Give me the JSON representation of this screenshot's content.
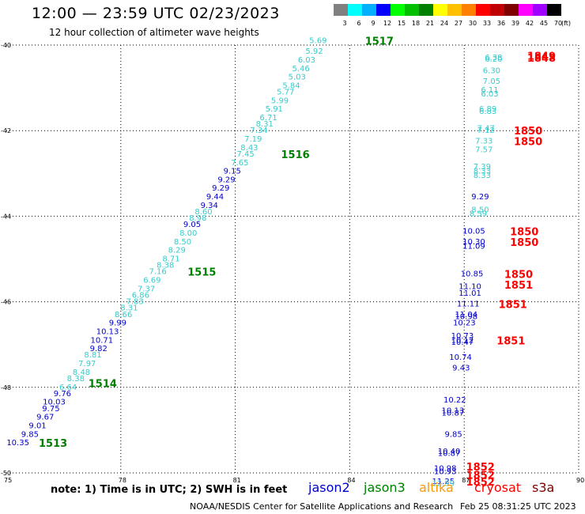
{
  "header": {
    "title": "12:00 — 23:59 UTC 02/23/2023",
    "subtitle": "12 hour collection of altimeter wave heights"
  },
  "colorbar": {
    "labels": [
      "3",
      "6",
      "9",
      "12",
      "15",
      "18",
      "21",
      "24",
      "27",
      "30",
      "33",
      "36",
      "39",
      "42",
      "45",
      "70",
      "(ft)"
    ],
    "colors": [
      "#808080",
      "#00ffff",
      "#00b0ff",
      "#0000ff",
      "#00ff00",
      "#00c000",
      "#008000",
      "#ffff00",
      "#ffc000",
      "#ff8000",
      "#ff0000",
      "#c00000",
      "#800000",
      "#ff00ff",
      "#a000ff",
      "#000000"
    ]
  },
  "footer": {
    "note": "note:  1) Time is in UTC;  2) SWH is in feet",
    "satellites": [
      {
        "name": "jason2",
        "color": "#0000cc"
      },
      {
        "name": "jason3",
        "color": "#008000"
      },
      {
        "name": "altika",
        "color": "#ff9900"
      },
      {
        "name": "cryosat",
        "color": "#ff0000"
      },
      {
        "name": "s3a",
        "color": "#800000"
      }
    ],
    "credit": "NOAA/NESDIS Center for Satellite Applications and Research",
    "timestamp": "Feb 25 08:31:25 UTC 2023"
  },
  "chart_data": {
    "type": "scatter",
    "title": "12:00 — 23:59 UTC 02/23/2023",
    "subtitle": "12 hour collection of altimeter wave heights",
    "xlabel": "",
    "ylabel": "",
    "xlim": [
      75,
      90
    ],
    "ylim": [
      -50,
      -40
    ],
    "x_ticks": [
      "75",
      "78",
      "81",
      "84",
      "87",
      "90"
    ],
    "y_ticks": [
      "-40",
      "-42",
      "-44",
      "-46",
      "-48",
      "-50"
    ],
    "grid": true,
    "series": [
      {
        "name": "track_west",
        "points": [
          {
            "lon": 83.4,
            "lat": -39.9,
            "swh": "5.69",
            "c": "#33cccc"
          },
          {
            "lon": 83.3,
            "lat": -40.15,
            "swh": "5.92",
            "c": "#33cccc"
          },
          {
            "lon": 83.1,
            "lat": -40.35,
            "swh": "6.03",
            "c": "#33cccc"
          },
          {
            "lon": 82.95,
            "lat": -40.55,
            "swh": "5.46",
            "c": "#33cccc"
          },
          {
            "lon": 82.85,
            "lat": -40.75,
            "swh": "5.03",
            "c": "#33cccc"
          },
          {
            "lon": 82.7,
            "lat": -40.95,
            "swh": "5.84",
            "c": "#33cccc"
          },
          {
            "lon": 82.55,
            "lat": -41.1,
            "swh": "5.77",
            "c": "#33cccc"
          },
          {
            "lon": 82.4,
            "lat": -41.3,
            "swh": "5.99",
            "c": "#33cccc"
          },
          {
            "lon": 82.25,
            "lat": -41.5,
            "swh": "5.91",
            "c": "#33cccc"
          },
          {
            "lon": 82.1,
            "lat": -41.7,
            "swh": "6.71",
            "c": "#33cccc"
          },
          {
            "lon": 82.0,
            "lat": -41.85,
            "swh": "8.31",
            "c": "#33cccc"
          },
          {
            "lon": 81.85,
            "lat": -42.0,
            "swh": "7.34",
            "c": "#33cccc"
          },
          {
            "lon": 81.7,
            "lat": -42.2,
            "swh": "7.19",
            "c": "#33cccc"
          },
          {
            "lon": 81.6,
            "lat": -42.4,
            "swh": "8.43",
            "c": "#33cccc"
          },
          {
            "lon": 81.5,
            "lat": -42.55,
            "swh": "7.45",
            "c": "#33cccc"
          },
          {
            "lon": 81.35,
            "lat": -42.75,
            "swh": "7.65",
            "c": "#33cccc"
          },
          {
            "lon": 81.15,
            "lat": -42.95,
            "swh": "9.15",
            "c": "#0000cc"
          },
          {
            "lon": 81.0,
            "lat": -43.15,
            "swh": "9.29",
            "c": "#0000cc"
          },
          {
            "lon": 80.85,
            "lat": -43.35,
            "swh": "9.29",
            "c": "#0000cc"
          },
          {
            "lon": 80.7,
            "lat": -43.55,
            "swh": "9.44",
            "c": "#0000cc"
          },
          {
            "lon": 80.55,
            "lat": -43.75,
            "swh": "9.34",
            "c": "#0000cc"
          },
          {
            "lon": 80.4,
            "lat": -43.9,
            "swh": "8.60",
            "c": "#33cccc"
          },
          {
            "lon": 80.25,
            "lat": -44.05,
            "swh": "8.98",
            "c": "#33cccc"
          },
          {
            "lon": 80.1,
            "lat": -44.2,
            "swh": "9.05",
            "c": "#0000cc"
          },
          {
            "lon": 80.0,
            "lat": -44.4,
            "swh": "8.00",
            "c": "#33cccc"
          },
          {
            "lon": 79.85,
            "lat": -44.6,
            "swh": "8.50",
            "c": "#33cccc"
          },
          {
            "lon": 79.7,
            "lat": -44.8,
            "swh": "8.29",
            "c": "#33cccc"
          },
          {
            "lon": 79.55,
            "lat": -45.0,
            "swh": "8.71",
            "c": "#33cccc"
          },
          {
            "lon": 79.4,
            "lat": -45.15,
            "swh": "8.38",
            "c": "#33cccc"
          },
          {
            "lon": 79.2,
            "lat": -45.3,
            "swh": "7.16",
            "c": "#33cccc"
          },
          {
            "lon": 79.05,
            "lat": -45.5,
            "swh": "6.69",
            "c": "#33cccc"
          },
          {
            "lon": 78.9,
            "lat": -45.7,
            "swh": "7.37",
            "c": "#33cccc"
          },
          {
            "lon": 78.75,
            "lat": -45.85,
            "swh": "6.86",
            "c": "#33cccc"
          },
          {
            "lon": 78.6,
            "lat": -46.0,
            "swh": "7.83",
            "c": "#33cccc"
          },
          {
            "lon": 78.45,
            "lat": -46.15,
            "swh": "8.31",
            "c": "#33cccc"
          },
          {
            "lon": 78.3,
            "lat": -46.3,
            "swh": "8.66",
            "c": "#33cccc"
          },
          {
            "lon": 78.15,
            "lat": -46.5,
            "swh": "9.99",
            "c": "#0000cc"
          },
          {
            "lon": 77.95,
            "lat": -46.7,
            "swh": "10.13",
            "c": "#0000cc"
          },
          {
            "lon": 77.8,
            "lat": -46.9,
            "swh": "10.71",
            "c": "#0000cc"
          },
          {
            "lon": 77.65,
            "lat": -47.1,
            "swh": "9.82",
            "c": "#0000cc"
          },
          {
            "lon": 77.5,
            "lat": -47.25,
            "swh": "8.81",
            "c": "#33cccc"
          },
          {
            "lon": 77.35,
            "lat": -47.45,
            "swh": "7.97",
            "c": "#33cccc"
          },
          {
            "lon": 77.2,
            "lat": -47.65,
            "swh": "8.48",
            "c": "#33cccc"
          },
          {
            "lon": 77.05,
            "lat": -47.8,
            "swh": "8.38",
            "c": "#33cccc"
          },
          {
            "lon": 76.85,
            "lat": -48.0,
            "swh": "6.64",
            "c": "#33cccc"
          },
          {
            "lon": 76.7,
            "lat": -48.15,
            "swh": "9.76",
            "c": "#0000cc"
          },
          {
            "lon": 76.55,
            "lat": -48.35,
            "swh": "10.03",
            "c": "#0000cc"
          },
          {
            "lon": 76.4,
            "lat": -48.5,
            "swh": "9.75",
            "c": "#0000cc"
          },
          {
            "lon": 76.25,
            "lat": -48.7,
            "swh": "9.67",
            "c": "#0000cc"
          },
          {
            "lon": 76.05,
            "lat": -48.9,
            "swh": "9.01",
            "c": "#0000cc"
          },
          {
            "lon": 75.85,
            "lat": -49.1,
            "swh": "9.85",
            "c": "#0000cc"
          },
          {
            "lon": 75.6,
            "lat": -49.3,
            "swh": "10.35",
            "c": "#0000cc"
          }
        ]
      },
      {
        "name": "track_east",
        "points": [
          {
            "lon": 88.0,
            "lat": -40.3,
            "swh": "6.38",
            "c": "#33cccc"
          },
          {
            "lon": 88.0,
            "lat": -40.33,
            "swh": "6.20",
            "c": "#33cccc"
          },
          {
            "lon": 87.95,
            "lat": -40.6,
            "swh": "6.30",
            "c": "#33cccc"
          },
          {
            "lon": 87.95,
            "lat": -40.85,
            "swh": "7.05",
            "c": "#33cccc"
          },
          {
            "lon": 87.9,
            "lat": -41.05,
            "swh": "6.11",
            "c": "#33cccc"
          },
          {
            "lon": 87.9,
            "lat": -41.15,
            "swh": "6.03",
            "c": "#33cccc"
          },
          {
            "lon": 87.85,
            "lat": -41.5,
            "swh": "6.89",
            "c": "#33cccc"
          },
          {
            "lon": 87.85,
            "lat": -41.55,
            "swh": "6.83",
            "c": "#33cccc"
          },
          {
            "lon": 87.8,
            "lat": -41.95,
            "swh": "7.47",
            "c": "#33cccc"
          },
          {
            "lon": 87.8,
            "lat": -42.0,
            "swh": "7.12",
            "c": "#33cccc"
          },
          {
            "lon": 87.75,
            "lat": -42.25,
            "swh": "7.33",
            "c": "#33cccc"
          },
          {
            "lon": 87.75,
            "lat": -42.45,
            "swh": "7.57",
            "c": "#33cccc"
          },
          {
            "lon": 87.7,
            "lat": -42.85,
            "swh": "7.39",
            "c": "#33cccc"
          },
          {
            "lon": 87.7,
            "lat": -42.95,
            "swh": "8.33",
            "c": "#33cccc"
          },
          {
            "lon": 87.7,
            "lat": -43.05,
            "swh": "8.33",
            "c": "#33cccc"
          },
          {
            "lon": 87.65,
            "lat": -43.55,
            "swh": "9.29",
            "c": "#0000cc"
          },
          {
            "lon": 87.65,
            "lat": -43.85,
            "swh": "8.50",
            "c": "#33cccc"
          },
          {
            "lon": 87.6,
            "lat": -43.95,
            "swh": "8.59",
            "c": "#33cccc"
          },
          {
            "lon": 87.55,
            "lat": -44.35,
            "swh": "10.05",
            "c": "#0000cc"
          },
          {
            "lon": 87.55,
            "lat": -44.6,
            "swh": "10.30",
            "c": "#0000cc"
          },
          {
            "lon": 87.55,
            "lat": -44.7,
            "swh": "11.09",
            "c": "#0000cc"
          },
          {
            "lon": 87.5,
            "lat": -45.35,
            "swh": "10.85",
            "c": "#0000cc"
          },
          {
            "lon": 87.45,
            "lat": -45.65,
            "swh": "11.10",
            "c": "#0000cc"
          },
          {
            "lon": 87.45,
            "lat": -45.8,
            "swh": "11.01",
            "c": "#0000cc"
          },
          {
            "lon": 87.4,
            "lat": -46.05,
            "swh": "11.11",
            "c": "#0000cc"
          },
          {
            "lon": 87.35,
            "lat": -46.3,
            "swh": "11.04",
            "c": "#0000cc"
          },
          {
            "lon": 87.35,
            "lat": -46.35,
            "swh": "10.98",
            "c": "#0000cc"
          },
          {
            "lon": 87.3,
            "lat": -46.5,
            "swh": "10.23",
            "c": "#0000cc"
          },
          {
            "lon": 87.25,
            "lat": -46.8,
            "swh": "10.73",
            "c": "#0000cc"
          },
          {
            "lon": 87.25,
            "lat": -46.9,
            "swh": "10.12",
            "c": "#0000cc"
          },
          {
            "lon": 87.25,
            "lat": -46.95,
            "swh": "10.47",
            "c": "#0000cc"
          },
          {
            "lon": 87.2,
            "lat": -47.3,
            "swh": "10.74",
            "c": "#0000cc"
          },
          {
            "lon": 87.15,
            "lat": -47.55,
            "swh": "9.43",
            "c": "#0000cc"
          },
          {
            "lon": 87.05,
            "lat": -48.3,
            "swh": "10.22",
            "c": "#0000cc"
          },
          {
            "lon": 87.0,
            "lat": -48.55,
            "swh": "10.13",
            "c": "#0000cc"
          },
          {
            "lon": 87.0,
            "lat": -48.6,
            "swh": "10.87",
            "c": "#0000cc"
          },
          {
            "lon": 86.95,
            "lat": -49.1,
            "swh": "9.85",
            "c": "#0000cc"
          },
          {
            "lon": 86.9,
            "lat": -49.5,
            "swh": "10.40",
            "c": "#0000cc"
          },
          {
            "lon": 86.9,
            "lat": -49.55,
            "swh": "10.87",
            "c": "#0000cc"
          },
          {
            "lon": 86.8,
            "lat": -49.9,
            "swh": "10.98",
            "c": "#0000cc"
          },
          {
            "lon": 86.8,
            "lat": -49.97,
            "swh": "10.93",
            "c": "#0000cc"
          },
          {
            "lon": 86.75,
            "lat": -50.2,
            "swh": "11.25",
            "c": "#0000cc"
          },
          {
            "lon": 86.75,
            "lat": -50.25,
            "swh": "12.99",
            "c": "#33cccc"
          }
        ]
      }
    ],
    "pass_labels": [
      {
        "text": "1517",
        "lon": 84.4,
        "lat": -39.9,
        "c": "#008000"
      },
      {
        "text": "1516",
        "lon": 82.2,
        "lat": -42.55,
        "c": "#008000"
      },
      {
        "text": "1515",
        "lon": 79.75,
        "lat": -45.3,
        "c": "#008000"
      },
      {
        "text": "1514",
        "lon": 77.15,
        "lat": -47.9,
        "c": "#008000"
      },
      {
        "text": "1513",
        "lon": 75.85,
        "lat": -49.3,
        "c": "#008000"
      },
      {
        "text": "1849",
        "lon": 88.65,
        "lat": -40.25,
        "c": "#ff0000"
      },
      {
        "text": "1848",
        "lon": 88.65,
        "lat": -40.3,
        "c": "#ff0000"
      },
      {
        "text": "1850",
        "lon": 88.3,
        "lat": -42.0,
        "c": "#ff0000"
      },
      {
        "text": "1850",
        "lon": 88.3,
        "lat": -42.25,
        "c": "#ff0000"
      },
      {
        "text": "1850",
        "lon": 88.2,
        "lat": -44.35,
        "c": "#ff0000"
      },
      {
        "text": "1850",
        "lon": 88.2,
        "lat": -44.6,
        "c": "#ff0000"
      },
      {
        "text": "1850",
        "lon": 88.05,
        "lat": -45.35,
        "c": "#ff0000"
      },
      {
        "text": "1851",
        "lon": 88.05,
        "lat": -45.6,
        "c": "#ff0000"
      },
      {
        "text": "1851",
        "lon": 87.9,
        "lat": -46.05,
        "c": "#ff0000"
      },
      {
        "text": "1851",
        "lon": 87.85,
        "lat": -46.9,
        "c": "#ff0000"
      },
      {
        "text": "1852",
        "lon": 87.05,
        "lat": -49.85,
        "c": "#ff0000"
      },
      {
        "text": "1852",
        "lon": 87.05,
        "lat": -50.05,
        "c": "#ff0000"
      },
      {
        "text": "1852",
        "lon": 87.05,
        "lat": -50.2,
        "c": "#ff0000"
      }
    ]
  }
}
